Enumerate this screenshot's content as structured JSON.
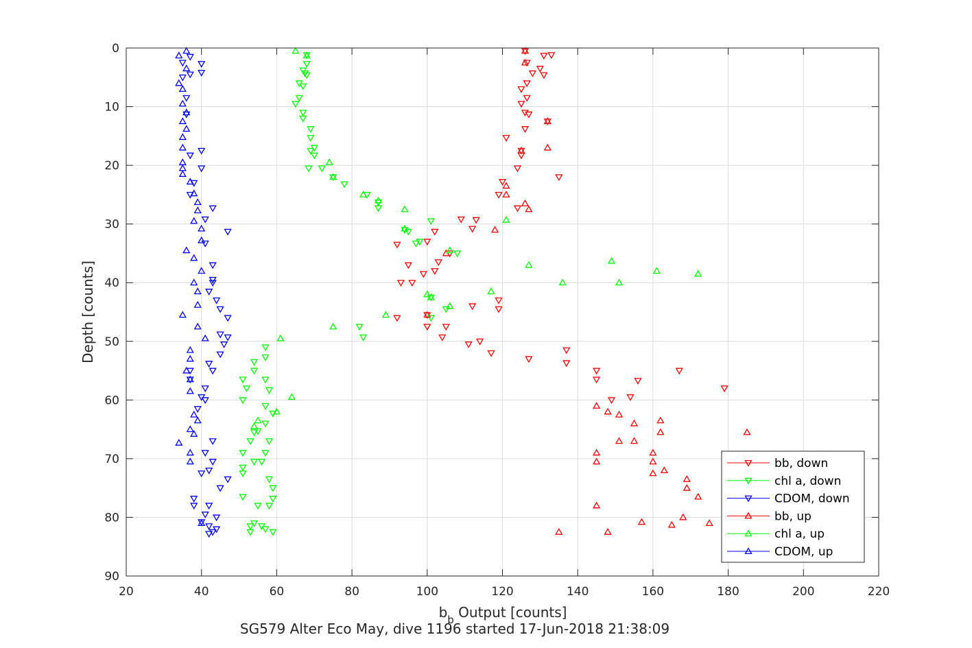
{
  "chart_data": {
    "type": "scatter",
    "title": "",
    "xlabel_base": "b",
    "xlabel_sub": "b",
    "xlabel_rest": " Output [counts]",
    "ylabel": "Depth [counts]",
    "caption": "SG579 Alter Eco May, dive 1196 started 17-Jun-2018 21:38:09",
    "xlim": [
      20,
      220
    ],
    "ylim": [
      0,
      90
    ],
    "y_reversed": true,
    "grid": true,
    "legend_position": "lower-right",
    "x_ticks": [
      "20",
      "40",
      "60",
      "80",
      "100",
      "120",
      "140",
      "160",
      "180",
      "200",
      "220"
    ],
    "y_ticks": [
      "0",
      "10",
      "20",
      "30",
      "40",
      "50",
      "60",
      "70",
      "80",
      "90"
    ],
    "series": [
      {
        "name": "bb, down",
        "color": "#ff0000",
        "marker": "triangle-down",
        "points": [
          [
            126,
            0.5
          ],
          [
            131,
            1.3
          ],
          [
            133,
            1.2
          ],
          [
            126.5,
            2.5
          ],
          [
            130,
            3.5
          ],
          [
            128,
            4.3
          ],
          [
            131,
            4.6
          ],
          [
            126.5,
            6
          ],
          [
            125,
            7
          ],
          [
            126.5,
            8.5
          ],
          [
            125,
            9.5
          ],
          [
            126,
            11
          ],
          [
            127,
            11.3
          ],
          [
            132,
            12.5
          ],
          [
            126,
            13.8
          ],
          [
            121,
            15.3
          ],
          [
            125,
            17.5
          ],
          [
            125,
            18.3
          ],
          [
            135,
            22
          ],
          [
            124,
            20.5
          ],
          [
            120,
            22.8
          ],
          [
            119,
            25
          ],
          [
            124,
            27.3
          ],
          [
            109,
            29.2
          ],
          [
            113,
            29.3
          ],
          [
            112,
            30.8
          ],
          [
            102,
            31.3
          ],
          [
            92,
            33.5
          ],
          [
            100,
            33
          ],
          [
            95,
            37
          ],
          [
            99,
            38.5
          ],
          [
            102,
            38
          ],
          [
            93,
            40
          ],
          [
            96,
            40
          ],
          [
            106,
            35
          ],
          [
            103,
            36.5
          ],
          [
            112,
            44
          ],
          [
            119,
            43
          ],
          [
            119,
            44.5
          ],
          [
            100,
            45.5
          ],
          [
            92,
            46
          ],
          [
            105,
            47.5
          ],
          [
            100,
            47.5
          ],
          [
            104,
            49.3
          ],
          [
            111,
            50.5
          ],
          [
            114,
            50
          ],
          [
            117,
            52
          ],
          [
            127,
            53
          ],
          [
            137,
            51.5
          ],
          [
            137,
            53.7
          ],
          [
            145,
            55
          ],
          [
            145,
            56.5
          ],
          [
            156,
            56.7
          ],
          [
            149,
            60
          ],
          [
            154,
            59.5
          ],
          [
            167,
            55
          ],
          [
            179,
            58
          ]
        ]
      },
      {
        "name": "chl a, down",
        "color": "#00ff00",
        "marker": "triangle-down",
        "points": [
          [
            68,
            1.2
          ],
          [
            68,
            2.7
          ],
          [
            67,
            3.8
          ],
          [
            67.5,
            4.3
          ],
          [
            68,
            4.6
          ],
          [
            66,
            6
          ],
          [
            67,
            6.5
          ],
          [
            66,
            8.5
          ],
          [
            65,
            9.5
          ],
          [
            67,
            11
          ],
          [
            67,
            12
          ],
          [
            69,
            13.8
          ],
          [
            69,
            15.3
          ],
          [
            70,
            17
          ],
          [
            69,
            17.5
          ],
          [
            70,
            18.3
          ],
          [
            68.5,
            20.5
          ],
          [
            75,
            22
          ],
          [
            72,
            20.5
          ],
          [
            78,
            23.2
          ],
          [
            84,
            25
          ],
          [
            87,
            26.3
          ],
          [
            87,
            27.3
          ],
          [
            94,
            31
          ],
          [
            95,
            31.3
          ],
          [
            97,
            33.3
          ],
          [
            98,
            33
          ],
          [
            101,
            29.5
          ],
          [
            101,
            42.5
          ],
          [
            101,
            46
          ],
          [
            108,
            35
          ],
          [
            105,
            44.5
          ],
          [
            82,
            47.5
          ],
          [
            83,
            49.3
          ],
          [
            57,
            51
          ],
          [
            57,
            52.7
          ],
          [
            54,
            53.5
          ],
          [
            54,
            55
          ],
          [
            51,
            56.5
          ],
          [
            57,
            56.5
          ],
          [
            52,
            58
          ],
          [
            58,
            58.3
          ],
          [
            51,
            60
          ],
          [
            57,
            61
          ],
          [
            59,
            62.3
          ],
          [
            57,
            64
          ],
          [
            54,
            65.5
          ],
          [
            55,
            65.3
          ],
          [
            58,
            67
          ],
          [
            53,
            67
          ],
          [
            51,
            69
          ],
          [
            57,
            69
          ],
          [
            51,
            71.5
          ],
          [
            51,
            72.5
          ],
          [
            54,
            70.5
          ],
          [
            56,
            70.5
          ],
          [
            58,
            73.5
          ],
          [
            59,
            75
          ],
          [
            51,
            76.5
          ],
          [
            59,
            76.8
          ],
          [
            58,
            78
          ],
          [
            55,
            78
          ],
          [
            53,
            81.5
          ],
          [
            54,
            81
          ],
          [
            56,
            81.5
          ],
          [
            57,
            82
          ],
          [
            53,
            82.5
          ],
          [
            59,
            82.5
          ]
        ]
      },
      {
        "name": "CDOM, down",
        "color": "#0000ff",
        "marker": "triangle-down",
        "points": [
          [
            37,
            1.5
          ],
          [
            35,
            2.5
          ],
          [
            40,
            2.7
          ],
          [
            40,
            4.2
          ],
          [
            37,
            4.5
          ],
          [
            35,
            5
          ],
          [
            36,
            8.5
          ],
          [
            36,
            11.3
          ],
          [
            40,
            17.5
          ],
          [
            37,
            18.3
          ],
          [
            40,
            20.5
          ],
          [
            38,
            23
          ],
          [
            37,
            25
          ],
          [
            43,
            27.3
          ],
          [
            41,
            29.2
          ],
          [
            47,
            31.3
          ],
          [
            41,
            33.3
          ],
          [
            43,
            37
          ],
          [
            43,
            39.5
          ],
          [
            43,
            40
          ],
          [
            42,
            41.5
          ],
          [
            44,
            43
          ],
          [
            45,
            44.5
          ],
          [
            47,
            46
          ],
          [
            45,
            48.8
          ],
          [
            47,
            49.3
          ],
          [
            46,
            50.5
          ],
          [
            45,
            52.2
          ],
          [
            42,
            53.8
          ],
          [
            43,
            55
          ],
          [
            37,
            55
          ],
          [
            37,
            56.5
          ],
          [
            41,
            58
          ],
          [
            40,
            59.5
          ],
          [
            41,
            60
          ],
          [
            39,
            61.5
          ],
          [
            43,
            67
          ],
          [
            41,
            69
          ],
          [
            43,
            70.5
          ],
          [
            40,
            72.5
          ],
          [
            42,
            72
          ],
          [
            47,
            73.5
          ],
          [
            45,
            75
          ],
          [
            38,
            76.8
          ],
          [
            42,
            78
          ],
          [
            38,
            78
          ],
          [
            41,
            79.5
          ],
          [
            44,
            80
          ],
          [
            40,
            80.8
          ],
          [
            42,
            81.5
          ],
          [
            44,
            82
          ],
          [
            43,
            82.5
          ],
          [
            42,
            82.8
          ]
        ]
      },
      {
        "name": "bb, up",
        "color": "#ff0000",
        "marker": "triangle-up",
        "points": [
          [
            126,
            0.5
          ],
          [
            126,
            2.5
          ],
          [
            132,
            12.5
          ],
          [
            132,
            17
          ],
          [
            125,
            17.5
          ],
          [
            126,
            26.5
          ],
          [
            127,
            27.5
          ],
          [
            121,
            23.5
          ],
          [
            121,
            25
          ],
          [
            100,
            45.5
          ],
          [
            118,
            31
          ],
          [
            105,
            35
          ],
          [
            145,
            61
          ],
          [
            148,
            62
          ],
          [
            151,
            62.5
          ],
          [
            155,
            64
          ],
          [
            162,
            63.5
          ],
          [
            162,
            65.5
          ],
          [
            151,
            67
          ],
          [
            155,
            67
          ],
          [
            160,
            69
          ],
          [
            145,
            69
          ],
          [
            145,
            70.5
          ],
          [
            160,
            70.5
          ],
          [
            163,
            72
          ],
          [
            160,
            72.5
          ],
          [
            169,
            73.5
          ],
          [
            169,
            75
          ],
          [
            172,
            76.5
          ],
          [
            185,
            65.5
          ],
          [
            145,
            78
          ],
          [
            168,
            80
          ],
          [
            157,
            80.8
          ],
          [
            165,
            81.3
          ],
          [
            175,
            81
          ],
          [
            148,
            82.5
          ],
          [
            135,
            82.5
          ]
        ]
      },
      {
        "name": "chl a, up",
        "color": "#00ff00",
        "marker": "triangle-up",
        "points": [
          [
            65,
            0.5
          ],
          [
            68,
            1.3
          ],
          [
            74,
            19.5
          ],
          [
            75,
            22
          ],
          [
            83,
            25
          ],
          [
            87,
            26
          ],
          [
            94,
            27.5
          ],
          [
            121,
            29.3
          ],
          [
            94,
            30.8
          ],
          [
            106,
            34.5
          ],
          [
            100,
            42
          ],
          [
            101,
            42.5
          ],
          [
            106,
            44
          ],
          [
            117,
            41.5
          ],
          [
            127,
            37
          ],
          [
            136,
            40
          ],
          [
            149,
            36.3
          ],
          [
            151,
            40
          ],
          [
            161,
            38
          ],
          [
            172,
            38.5
          ],
          [
            89,
            45.5
          ],
          [
            75,
            47.5
          ],
          [
            61,
            49.5
          ],
          [
            60,
            62
          ],
          [
            64,
            59.5
          ],
          [
            55,
            63.5
          ],
          [
            54,
            64.5
          ]
        ]
      },
      {
        "name": "CDOM, up",
        "color": "#0000ff",
        "marker": "triangle-up",
        "points": [
          [
            36,
            0.5
          ],
          [
            34,
            1.3
          ],
          [
            36,
            3.5
          ],
          [
            34,
            6
          ],
          [
            35,
            7
          ],
          [
            35,
            9.5
          ],
          [
            36,
            11
          ],
          [
            35,
            12.5
          ],
          [
            36,
            13.8
          ],
          [
            35,
            15.2
          ],
          [
            35,
            17
          ],
          [
            35,
            19.5
          ],
          [
            35,
            20.5
          ],
          [
            35,
            21.5
          ],
          [
            37,
            22.8
          ],
          [
            38,
            24.8
          ],
          [
            39,
            26.3
          ],
          [
            39,
            27.7
          ],
          [
            38,
            29.5
          ],
          [
            40,
            30.8
          ],
          [
            40,
            32.8
          ],
          [
            36,
            34.5
          ],
          [
            38,
            35.8
          ],
          [
            40,
            38
          ],
          [
            38,
            40
          ],
          [
            39,
            41.5
          ],
          [
            39,
            43.8
          ],
          [
            35,
            45.5
          ],
          [
            39,
            47.5
          ],
          [
            41,
            49.5
          ],
          [
            37,
            51.5
          ],
          [
            37,
            53
          ],
          [
            36,
            55
          ],
          [
            37,
            56.5
          ],
          [
            37,
            58.5
          ],
          [
            38,
            62.5
          ],
          [
            37,
            65
          ],
          [
            38,
            65.8
          ],
          [
            39,
            63.5
          ],
          [
            34,
            67.3
          ],
          [
            37,
            69
          ],
          [
            37,
            70.5
          ],
          [
            40,
            81
          ]
        ]
      }
    ]
  }
}
